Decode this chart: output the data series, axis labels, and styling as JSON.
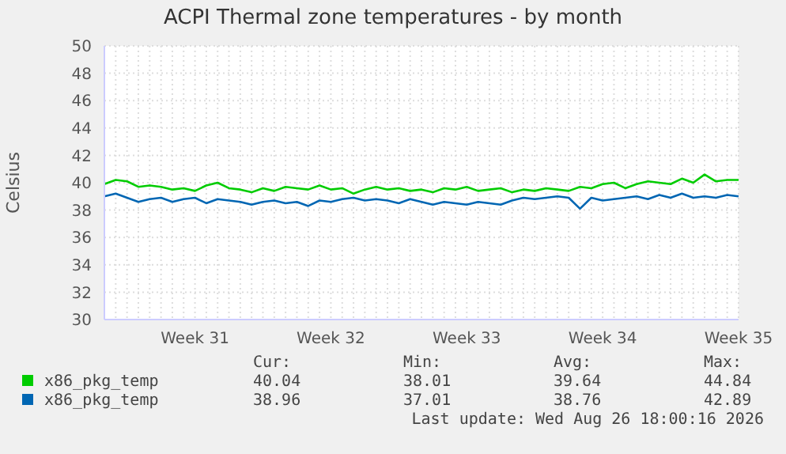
{
  "chart_data": {
    "type": "line",
    "title": "ACPI Thermal zone temperatures - by month",
    "ylabel": "Celsius",
    "categories": [
      null,
      null,
      null,
      null,
      null,
      null,
      null,
      null,
      "Week 31",
      null,
      null,
      null,
      null,
      null,
      null,
      null,
      null,
      null,
      null,
      null,
      "Week 32",
      null,
      null,
      null,
      null,
      null,
      null,
      null,
      null,
      null,
      null,
      null,
      "Week 33",
      null,
      null,
      null,
      null,
      null,
      null,
      null,
      null,
      null,
      null,
      null,
      "Week 34",
      null,
      null,
      null,
      null,
      null,
      null,
      null,
      null,
      null,
      null,
      null,
      "Week 35"
    ],
    "series": [
      {
        "name": "x86_pkg_temp",
        "color": "#00cc00",
        "values": [
          39.9,
          40.2,
          40.1,
          39.7,
          39.8,
          39.7,
          39.5,
          39.6,
          39.4,
          39.8,
          40.0,
          39.6,
          39.5,
          39.3,
          39.6,
          39.4,
          39.7,
          39.6,
          39.5,
          39.8,
          39.5,
          39.6,
          39.2,
          39.5,
          39.7,
          39.5,
          39.6,
          39.4,
          39.5,
          39.3,
          39.6,
          39.5,
          39.7,
          39.4,
          39.5,
          39.6,
          39.3,
          39.5,
          39.4,
          39.6,
          39.5,
          39.4,
          39.7,
          39.6,
          39.9,
          40.0,
          39.6,
          39.9,
          40.1,
          40.0,
          39.9,
          40.3,
          40.0,
          40.6,
          40.1,
          40.2,
          40.2
        ]
      },
      {
        "name": "x86_pkg_temp",
        "color": "#0066b3",
        "values": [
          39.0,
          39.2,
          38.9,
          38.6,
          38.8,
          38.9,
          38.6,
          38.8,
          38.9,
          38.5,
          38.8,
          38.7,
          38.6,
          38.4,
          38.6,
          38.7,
          38.5,
          38.6,
          38.3,
          38.7,
          38.6,
          38.8,
          38.9,
          38.7,
          38.8,
          38.7,
          38.5,
          38.8,
          38.6,
          38.4,
          38.6,
          38.5,
          38.4,
          38.6,
          38.5,
          38.4,
          38.7,
          38.9,
          38.8,
          38.9,
          39.0,
          38.9,
          38.1,
          38.9,
          38.7,
          38.8,
          38.9,
          39.0,
          38.8,
          39.1,
          38.9,
          39.2,
          38.9,
          39.0,
          38.9,
          39.1,
          39.0
        ]
      }
    ],
    "ylim": [
      30,
      50
    ],
    "yticks": [
      30,
      32,
      34,
      36,
      38,
      40,
      42,
      44,
      46,
      48,
      50
    ],
    "grid": true,
    "legend": "bottom",
    "marker": "none",
    "line_style": "solid",
    "annotations": [
      "Cur:",
      "Min:",
      "Avg:",
      "Max:",
      "40.04",
      "38.01",
      "39.64",
      "44.84",
      "38.96",
      "37.01",
      "38.76",
      "42.89",
      "Last update: Wed Aug 26 18:00:16 2026"
    ]
  }
}
